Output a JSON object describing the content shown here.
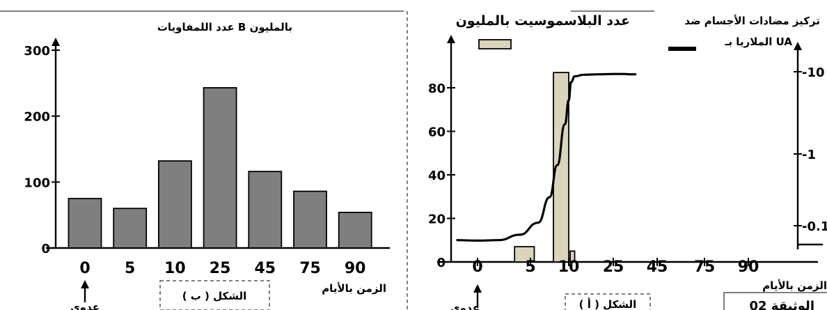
{
  "chart_data": [
    {
      "id": "b",
      "type": "bar",
      "title": "الشكل ( ب )",
      "ylabel": "عدد اللمفاويات B بالمليون",
      "xlabel": "الزمن بالأيام",
      "categories": [
        "0",
        "5",
        "10",
        "25",
        "45",
        "75",
        "90"
      ],
      "values": [
        75,
        60,
        132,
        243,
        116,
        86,
        54
      ],
      "ylim": [
        0,
        300
      ],
      "yticks": [
        "0",
        "100",
        "200",
        "300"
      ],
      "annotation": "عدوى",
      "bar_color": "#7f7f7f"
    },
    {
      "id": "a",
      "type": "bar+line",
      "title": "الشكل ( أ )",
      "ylabel_left": "عدد البلاسموسيت بالمليون",
      "ylabel_right_line1": "تركيز مضادات الأجسام ضد",
      "ylabel_right_line2": "الملاريا بـ UA",
      "xlabel": "الزمن بالأيام",
      "categories": [
        "0",
        "5",
        "10",
        "25",
        "45",
        "75",
        "90"
      ],
      "bars": [
        {
          "x_start": 3.5,
          "x_end": 5.5,
          "value": 7
        },
        {
          "x_start": 8,
          "x_end": 10,
          "value": 87
        },
        {
          "x_start": 10.5,
          "x_end": 12,
          "value": 5
        }
      ],
      "ylim_left": [
        0,
        100
      ],
      "yticks_left": [
        "0",
        "20",
        "40",
        "60",
        "80"
      ],
      "yticks_right": [
        "0.1",
        "1",
        "10"
      ],
      "antibody_curve": [
        [
          -2,
          0.063
        ],
        [
          0,
          0.062
        ],
        [
          2,
          0.063
        ],
        [
          4,
          0.075
        ],
        [
          6,
          0.11
        ],
        [
          7.5,
          0.25
        ],
        [
          8.5,
          0.7
        ],
        [
          9.5,
          2.3
        ],
        [
          10,
          4.5
        ],
        [
          10.8,
          7.5
        ],
        [
          12,
          8.8
        ],
        [
          15,
          9.2
        ],
        [
          20,
          9.3
        ],
        [
          25,
          9.4
        ],
        [
          30,
          9.4
        ],
        [
          33,
          9.3
        ],
        [
          35.5,
          9.3
        ]
      ],
      "annotation": "عدوى",
      "bar_color": "#d9d4bb"
    }
  ],
  "footer_partial": "الوثيقة 02"
}
